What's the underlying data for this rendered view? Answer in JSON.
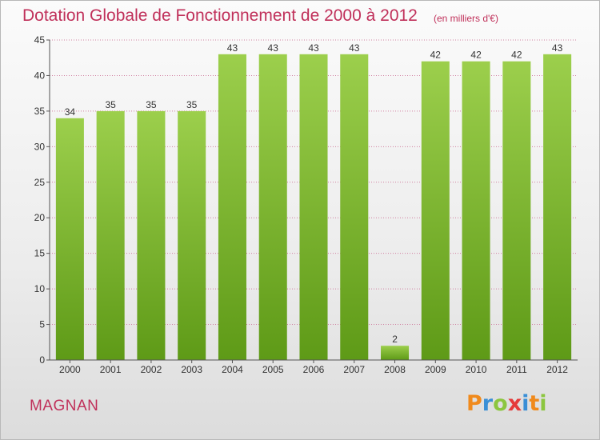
{
  "title": "Dotation Globale de Fonctionnement de 2000 à 2012",
  "subtitle": "(en milliers d'€)",
  "commune": "MAGNAN",
  "logo": {
    "letters": [
      "P",
      "r",
      "o",
      "x",
      "i",
      "t",
      "i"
    ],
    "colors": [
      "#f08a1c",
      "#3a8fd6",
      "#8cc63f",
      "#e53b3b",
      "#3a8fd6",
      "#f08a1c",
      "#8cc63f"
    ]
  },
  "chart_data": {
    "type": "bar",
    "categories": [
      "2000",
      "2001",
      "2002",
      "2003",
      "2004",
      "2005",
      "2006",
      "2007",
      "2008",
      "2009",
      "2010",
      "2011",
      "2012"
    ],
    "values": [
      34,
      35,
      35,
      35,
      43,
      43,
      43,
      43,
      2,
      42,
      42,
      42,
      43
    ],
    "ylim": [
      0,
      45
    ],
    "yticks": [
      0,
      5,
      10,
      15,
      20,
      25,
      30,
      35,
      40,
      45
    ],
    "grid": true,
    "bar_color_top": "#9ccf4c",
    "bar_color_bottom": "#5e9a17",
    "text_color": "#333333",
    "grid_color": "#d07fa0"
  }
}
